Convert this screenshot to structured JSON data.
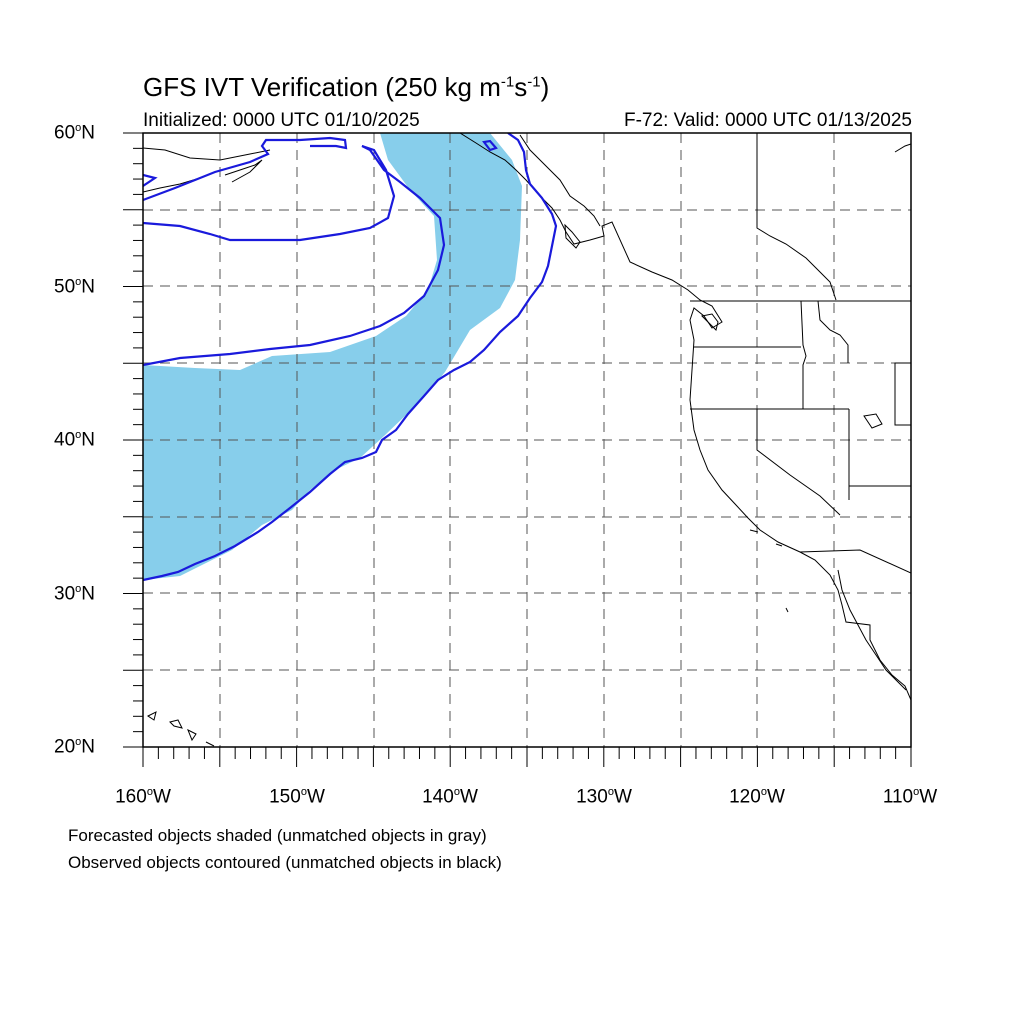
{
  "title": {
    "main": "GFS IVT Verification (250 kg m",
    "exp1": "-1",
    "mid": "s",
    "exp2": "-1",
    "end": ")"
  },
  "initialized": "Initialized: 0000 UTC 01/10/2025",
  "valid": "F-72: Valid: 0000 UTC 01/13/2025",
  "lat_labels": [
    {
      "value": "60",
      "unit": "o",
      "hemi": "N"
    },
    {
      "value": "50",
      "unit": "o",
      "hemi": "N"
    },
    {
      "value": "40",
      "unit": "o",
      "hemi": "N"
    },
    {
      "value": "30",
      "unit": "o",
      "hemi": "N"
    },
    {
      "value": "20",
      "unit": "o",
      "hemi": "N"
    }
  ],
  "lon_labels": [
    {
      "value": "160",
      "unit": "o",
      "hemi": "W"
    },
    {
      "value": "150",
      "unit": "o",
      "hemi": "W"
    },
    {
      "value": "140",
      "unit": "o",
      "hemi": "W"
    },
    {
      "value": "130",
      "unit": "o",
      "hemi": "W"
    },
    {
      "value": "120",
      "unit": "o",
      "hemi": "W"
    },
    {
      "value": "110",
      "unit": "o",
      "hemi": "W"
    }
  ],
  "legend": {
    "line1": "Forecasted objects shaded (unmatched objects in gray)",
    "line2": "Observed objects contoured (unmatched objects in black)"
  },
  "map": {
    "lon_range": [
      -160,
      -110
    ],
    "lat_range": [
      20,
      60
    ],
    "grid_spacing_deg": 5,
    "grid_style": "dashed",
    "forecast_fill_color": "#87ceeb",
    "observed_contour_color": "#1a1adc",
    "coastline_color": "#000000"
  }
}
